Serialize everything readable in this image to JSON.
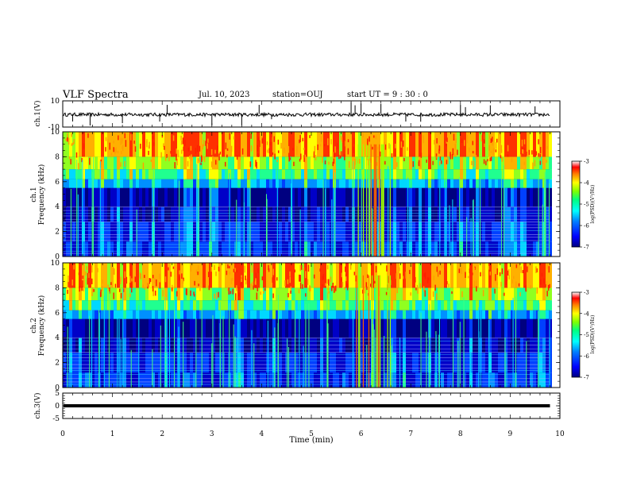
{
  "header": {
    "title": "VLF Spectra",
    "date": "Jul. 10, 2023",
    "station": "station=OUJ",
    "start": "start UT =  9 : 30 : 0"
  },
  "xaxis": {
    "label": "Time (min)",
    "ticks": [
      "0",
      "1",
      "2",
      "3",
      "4",
      "5",
      "6",
      "7",
      "8",
      "9",
      "10"
    ]
  },
  "colors": {
    "colorbar": [
      "#00007f",
      "#0000ff",
      "#0080ff",
      "#00ffff",
      "#00ff80",
      "#80ff00",
      "#ffff00",
      "#ff8000",
      "#ff0000",
      "#ffffff"
    ]
  },
  "chart_data": [
    {
      "type": "line",
      "title": "",
      "ylabel": "ch.1(V)",
      "ylim": [
        -10,
        10
      ],
      "yticks": [
        "10",
        "-10"
      ],
      "xlim": [
        0,
        10
      ],
      "description_series": [
        {
          "values_mean": -0.5,
          "range": [
            -2,
            2
          ]
        }
      ]
    },
    {
      "type": "heatmap",
      "title": "",
      "ylabel": "ch.1",
      "ylabel2": "Frequency (kHz)",
      "ylim": [
        0,
        10
      ],
      "yticks": [
        "0",
        "2",
        "4",
        "6",
        "8",
        "10"
      ],
      "xlim": [
        0,
        10
      ],
      "colorbar": {
        "label": "log(PSD)(V²/Hz)",
        "range": [
          -7,
          -3
        ],
        "ticks": [
          "-3",
          "-4",
          "-5",
          "-6",
          "-7"
        ]
      }
    },
    {
      "type": "heatmap",
      "title": "",
      "ylabel": "ch.2",
      "ylabel2": "Frequency (kHz)",
      "ylim": [
        0,
        10
      ],
      "yticks": [
        "0",
        "2",
        "4",
        "6",
        "8",
        "10"
      ],
      "xlim": [
        0,
        10
      ],
      "colorbar": {
        "label": "log(PSD)(V²/Hz)",
        "range": [
          -7,
          -3
        ],
        "ticks": [
          "-3",
          "-4",
          "-5",
          "-6",
          "-7"
        ]
      }
    },
    {
      "type": "line",
      "title": "",
      "ylabel": "ch.3(V)",
      "ylim": [
        -5,
        5
      ],
      "yticks": [
        "5",
        "0",
        "-5"
      ],
      "xlim": [
        0,
        10
      ],
      "series": [
        {
          "x": [
            0,
            9.8
          ],
          "values": [
            0,
            0
          ]
        }
      ]
    }
  ]
}
